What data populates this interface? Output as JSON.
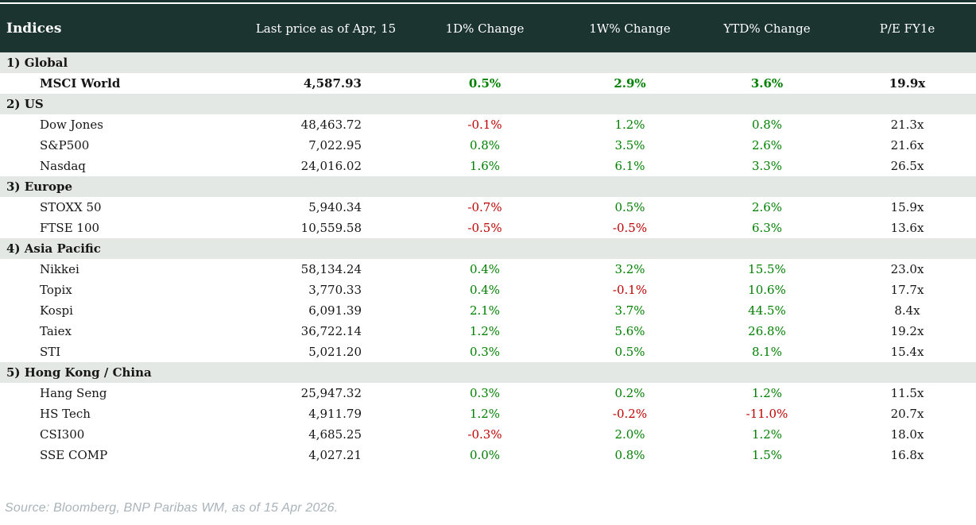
{
  "colors": {
    "header_bg": "#1b342f",
    "section_bg": "#e3e8e4",
    "positive": "#008000",
    "negative": "#c00000",
    "text": "#161616",
    "footer_text": "#a9b3ba"
  },
  "header": {
    "title": "Indices",
    "columns": [
      "Last price as of Apr, 15",
      "1D% Change",
      "1W% Change",
      "YTD% Change",
      "P/E FY1e"
    ]
  },
  "table": {
    "sections": [
      {
        "label": "1) Global",
        "rows": [
          {
            "name": "MSCI World",
            "price": "4,587.93",
            "d1": "0.5%",
            "w1": "2.9%",
            "ytd": "3.6%",
            "pe": "19.9x",
            "bold": true
          }
        ]
      },
      {
        "label": "2) US",
        "rows": [
          {
            "name": "Dow Jones",
            "price": "48,463.72",
            "d1": "-0.1%",
            "w1": "1.2%",
            "ytd": "0.8%",
            "pe": "21.3x"
          },
          {
            "name": "S&P500",
            "price": "7,022.95",
            "d1": "0.8%",
            "w1": "3.5%",
            "ytd": "2.6%",
            "pe": "21.6x"
          },
          {
            "name": "Nasdaq",
            "price": "24,016.02",
            "d1": "1.6%",
            "w1": "6.1%",
            "ytd": "3.3%",
            "pe": "26.5x"
          }
        ]
      },
      {
        "label": "3) Europe",
        "rows": [
          {
            "name": "STOXX 50",
            "price": "5,940.34",
            "d1": "-0.7%",
            "w1": "0.5%",
            "ytd": "2.6%",
            "pe": "15.9x"
          },
          {
            "name": "FTSE 100",
            "price": "10,559.58",
            "d1": "-0.5%",
            "w1": "-0.5%",
            "ytd": "6.3%",
            "pe": "13.6x"
          }
        ]
      },
      {
        "label": "4) Asia Pacific",
        "rows": [
          {
            "name": "Nikkei",
            "price": "58,134.24",
            "d1": "0.4%",
            "w1": "3.2%",
            "ytd": "15.5%",
            "pe": "23.0x"
          },
          {
            "name": "Topix",
            "price": "3,770.33",
            "d1": "0.4%",
            "w1": "-0.1%",
            "ytd": "10.6%",
            "pe": "17.7x"
          },
          {
            "name": "Kospi",
            "price": "6,091.39",
            "d1": "2.1%",
            "w1": "3.7%",
            "ytd": "44.5%",
            "pe": "8.4x"
          },
          {
            "name": "Taiex",
            "price": "36,722.14",
            "d1": "1.2%",
            "w1": "5.6%",
            "ytd": "26.8%",
            "pe": "19.2x"
          },
          {
            "name": "STI",
            "price": "5,021.20",
            "d1": "0.3%",
            "w1": "0.5%",
            "ytd": "8.1%",
            "pe": "15.4x"
          }
        ]
      },
      {
        "label": "5) Hong Kong / China",
        "rows": [
          {
            "name": "Hang Seng",
            "price": "25,947.32",
            "d1": "0.3%",
            "w1": "0.2%",
            "ytd": "1.2%",
            "pe": "11.5x"
          },
          {
            "name": "HS Tech",
            "price": "4,911.79",
            "d1": "1.2%",
            "w1": "-0.2%",
            "ytd": "-11.0%",
            "pe": "20.7x"
          },
          {
            "name": "CSI300",
            "price": "4,685.25",
            "d1": "-0.3%",
            "w1": "2.0%",
            "ytd": "1.2%",
            "pe": "18.0x"
          },
          {
            "name": "SSE COMP",
            "price": "4,027.21",
            "d1": "0.0%",
            "w1": "0.8%",
            "ytd": "1.5%",
            "pe": "16.8x"
          }
        ]
      }
    ]
  },
  "footer": {
    "source": "Source: Bloomberg, BNP Paribas WM, as of 15 Apr 2026."
  },
  "chart_data": {
    "type": "table",
    "title": "Indices",
    "columns": [
      "Indices",
      "Last price as of Apr, 15",
      "1D% Change",
      "1W% Change",
      "YTD% Change",
      "P/E FY1e"
    ],
    "rows": [
      {
        "section": "1) Global",
        "index": "MSCI World",
        "last_price": 4587.93,
        "change_1d_pct": 0.5,
        "change_1w_pct": 2.9,
        "ytd_pct": 3.6,
        "pe_fy1e": 19.9
      },
      {
        "section": "2) US",
        "index": "Dow Jones",
        "last_price": 48463.72,
        "change_1d_pct": -0.1,
        "change_1w_pct": 1.2,
        "ytd_pct": 0.8,
        "pe_fy1e": 21.3
      },
      {
        "section": "2) US",
        "index": "S&P500",
        "last_price": 7022.95,
        "change_1d_pct": 0.8,
        "change_1w_pct": 3.5,
        "ytd_pct": 2.6,
        "pe_fy1e": 21.6
      },
      {
        "section": "2) US",
        "index": "Nasdaq",
        "last_price": 24016.02,
        "change_1d_pct": 1.6,
        "change_1w_pct": 6.1,
        "ytd_pct": 3.3,
        "pe_fy1e": 26.5
      },
      {
        "section": "3) Europe",
        "index": "STOXX 50",
        "last_price": 5940.34,
        "change_1d_pct": -0.7,
        "change_1w_pct": 0.5,
        "ytd_pct": 2.6,
        "pe_fy1e": 15.9
      },
      {
        "section": "3) Europe",
        "index": "FTSE 100",
        "last_price": 10559.58,
        "change_1d_pct": -0.5,
        "change_1w_pct": -0.5,
        "ytd_pct": 6.3,
        "pe_fy1e": 13.6
      },
      {
        "section": "4) Asia Pacific",
        "index": "Nikkei",
        "last_price": 58134.24,
        "change_1d_pct": 0.4,
        "change_1w_pct": 3.2,
        "ytd_pct": 15.5,
        "pe_fy1e": 23.0
      },
      {
        "section": "4) Asia Pacific",
        "index": "Topix",
        "last_price": 3770.33,
        "change_1d_pct": 0.4,
        "change_1w_pct": -0.1,
        "ytd_pct": 10.6,
        "pe_fy1e": 17.7
      },
      {
        "section": "4) Asia Pacific",
        "index": "Kospi",
        "last_price": 6091.39,
        "change_1d_pct": 2.1,
        "change_1w_pct": 3.7,
        "ytd_pct": 44.5,
        "pe_fy1e": 8.4
      },
      {
        "section": "4) Asia Pacific",
        "index": "Taiex",
        "last_price": 36722.14,
        "change_1d_pct": 1.2,
        "change_1w_pct": 5.6,
        "ytd_pct": 26.8,
        "pe_fy1e": 19.2
      },
      {
        "section": "4) Asia Pacific",
        "index": "STI",
        "last_price": 5021.2,
        "change_1d_pct": 0.3,
        "change_1w_pct": 0.5,
        "ytd_pct": 8.1,
        "pe_fy1e": 15.4
      },
      {
        "section": "5) Hong Kong / China",
        "index": "Hang Seng",
        "last_price": 25947.32,
        "change_1d_pct": 0.3,
        "change_1w_pct": 0.2,
        "ytd_pct": 1.2,
        "pe_fy1e": 11.5
      },
      {
        "section": "5) Hong Kong / China",
        "index": "HS Tech",
        "last_price": 4911.79,
        "change_1d_pct": 1.2,
        "change_1w_pct": -0.2,
        "ytd_pct": -11.0,
        "pe_fy1e": 20.7
      },
      {
        "section": "5) Hong Kong / China",
        "index": "CSI300",
        "last_price": 4685.25,
        "change_1d_pct": -0.3,
        "change_1w_pct": 2.0,
        "ytd_pct": 1.2,
        "pe_fy1e": 18.0
      },
      {
        "section": "5) Hong Kong / China",
        "index": "SSE COMP",
        "last_price": 4027.21,
        "change_1d_pct": 0.0,
        "change_1w_pct": 0.8,
        "ytd_pct": 1.5,
        "pe_fy1e": 16.8
      }
    ],
    "notes": {
      "positive_values_color": "green",
      "negative_values_color": "red",
      "bold_rows": [
        "MSCI World"
      ],
      "source_note": "Source: Bloomberg, BNP Paribas WM, as of 15 Apr 2026."
    }
  }
}
